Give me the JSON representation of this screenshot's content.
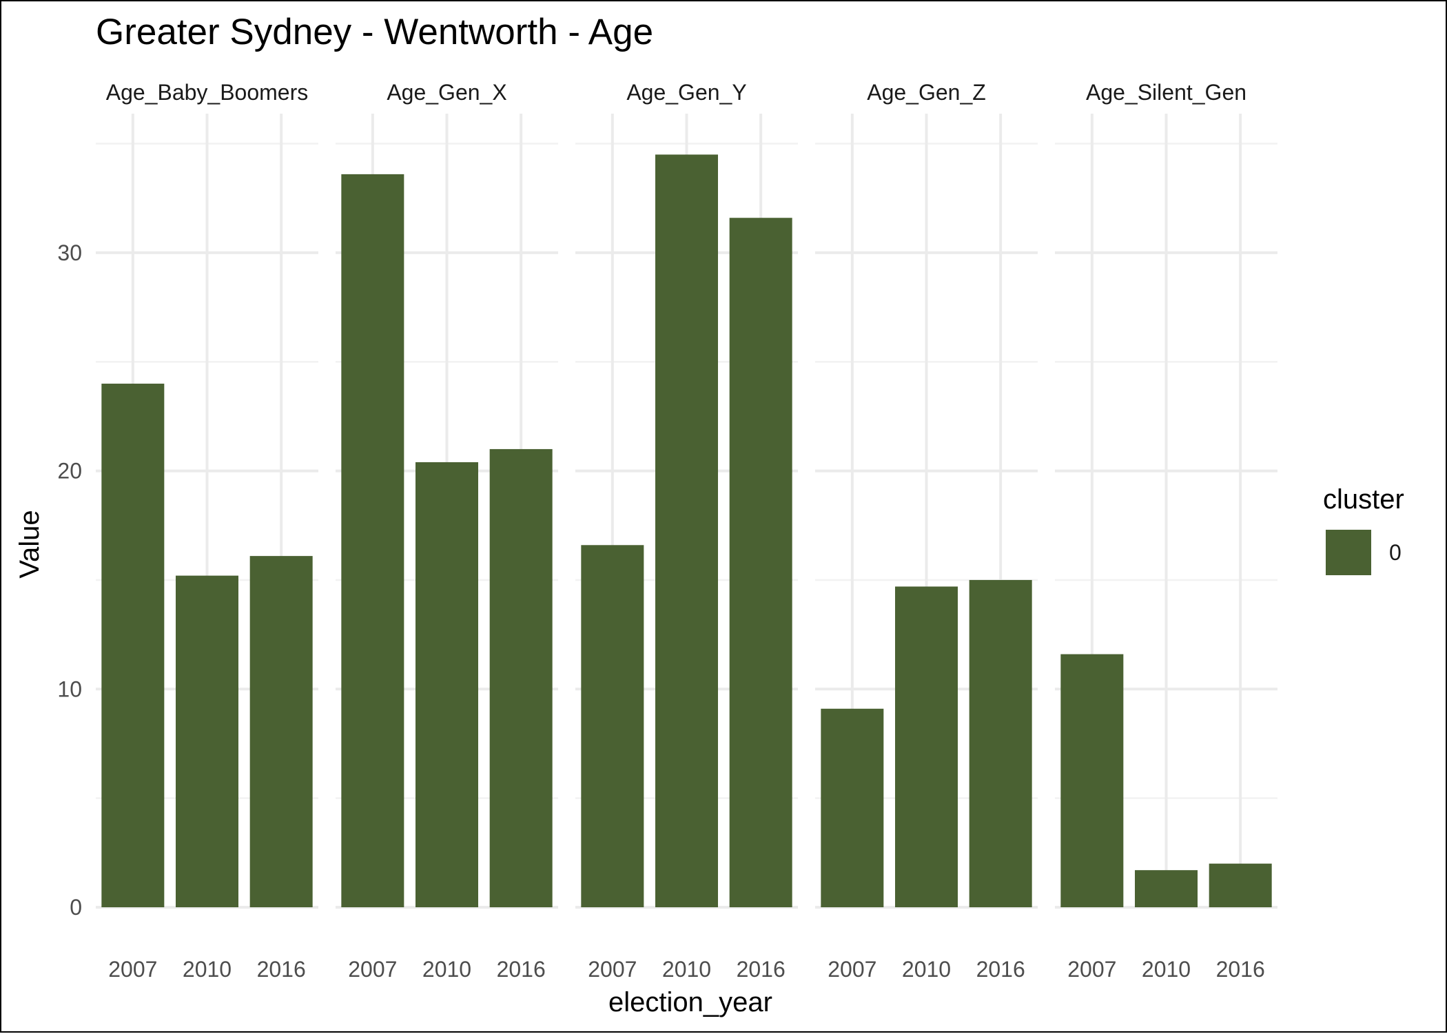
{
  "chart_data": {
    "type": "bar",
    "title": "Greater Sydney - Wentworth - Age",
    "xlabel": "election_year",
    "ylabel": "Value",
    "categories": [
      "2007",
      "2010",
      "2016"
    ],
    "ylim": [
      0,
      36
    ],
    "y_ticks": [
      "0",
      "10",
      "20",
      "30"
    ],
    "grid": true,
    "facets": [
      {
        "name": "Age_Baby_Boomers",
        "values": [
          24.0,
          15.2,
          16.1
        ]
      },
      {
        "name": "Age_Gen_X",
        "values": [
          33.6,
          20.4,
          21.0
        ]
      },
      {
        "name": "Age_Gen_Y",
        "values": [
          16.6,
          34.5,
          31.6
        ]
      },
      {
        "name": "Age_Gen_Z",
        "values": [
          9.1,
          14.7,
          15.0
        ]
      },
      {
        "name": "Age_Silent_Gen",
        "values": [
          11.6,
          1.7,
          2.0
        ]
      }
    ],
    "legend": {
      "title": "cluster",
      "placement": "right",
      "items": [
        {
          "label": "0",
          "color": "#4a6132"
        }
      ]
    },
    "bar_color": "#4a6132"
  }
}
